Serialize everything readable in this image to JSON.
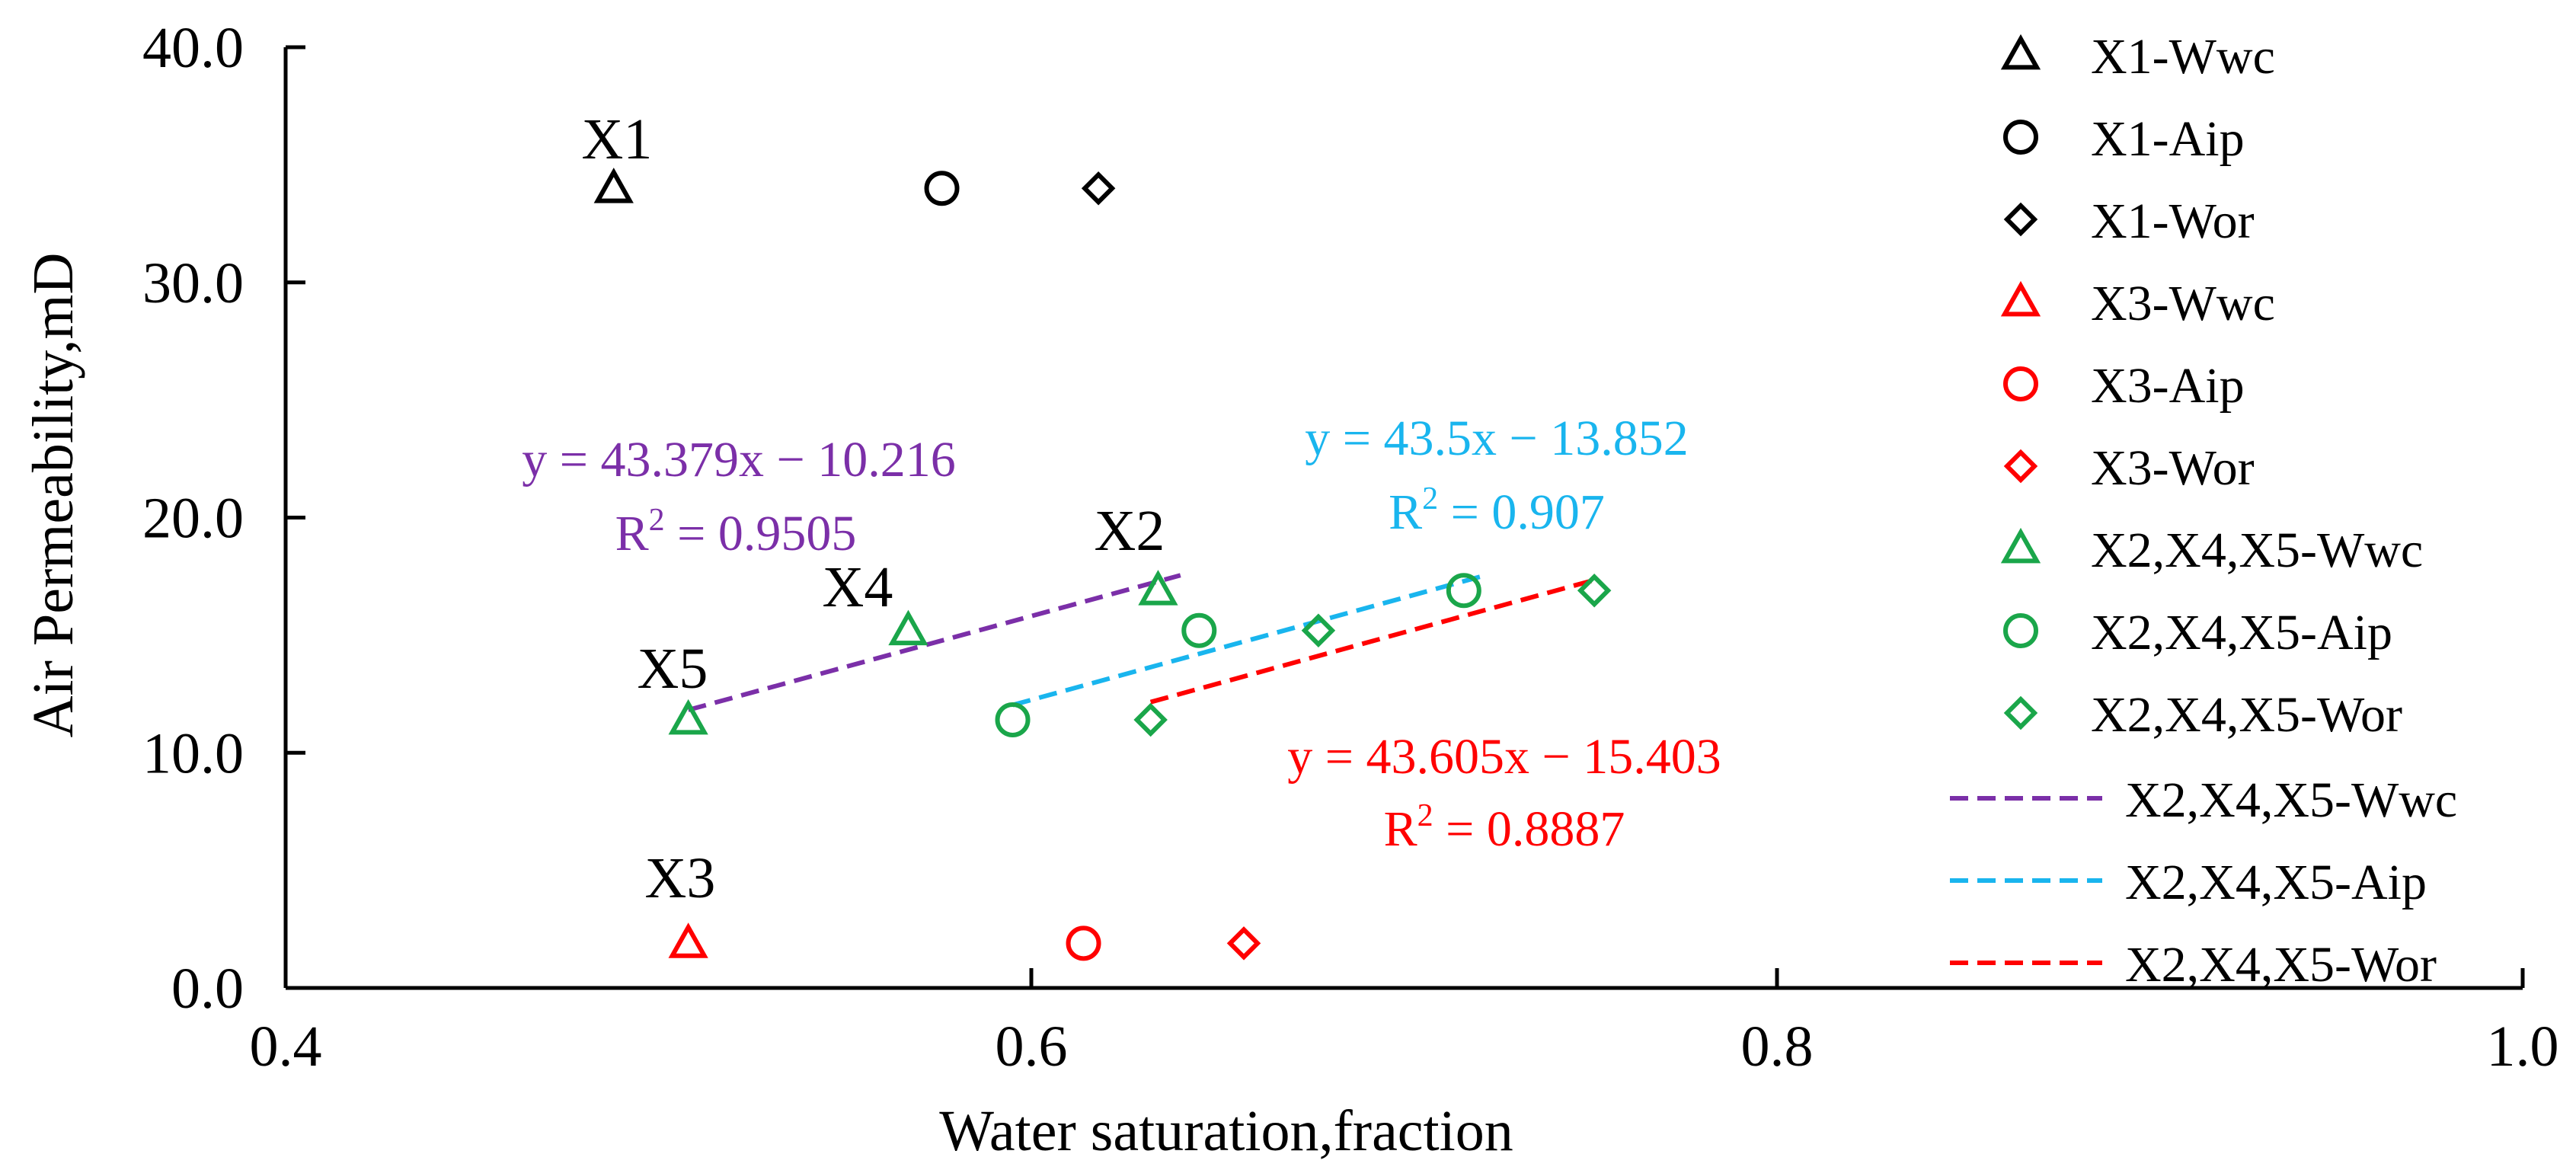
{
  "chart_data": {
    "type": "scatter",
    "title": "",
    "xlabel": "Water saturation,fraction",
    "ylabel": "Air Permeability,mD",
    "xlim": [
      0.4,
      1.0
    ],
    "ylim": [
      0.0,
      40.0
    ],
    "xticks": [
      "0.4",
      "0.6",
      "0.8",
      "1.0"
    ],
    "xtick_values": [
      0.4,
      0.6,
      0.8,
      1.0
    ],
    "yticks": [
      "0.0",
      "10.0",
      "20.0",
      "30.0",
      "40.0"
    ],
    "ytick_values": [
      0,
      10,
      20,
      30,
      40
    ],
    "grid": false,
    "legend_position": "right",
    "series": [
      {
        "name": "X1-Wwc",
        "marker": "triangle",
        "color": "#000000",
        "points": [
          {
            "x": 0.488,
            "y": 34.0
          }
        ]
      },
      {
        "name": "X1-Aip",
        "marker": "circle",
        "color": "#000000",
        "points": [
          {
            "x": 0.576,
            "y": 34.0
          }
        ]
      },
      {
        "name": "X1-Wor",
        "marker": "diamond",
        "color": "#000000",
        "points": [
          {
            "x": 0.618,
            "y": 34.0
          }
        ]
      },
      {
        "name": "X3-Wwc",
        "marker": "triangle",
        "color": "#ff0000",
        "points": [
          {
            "x": 0.508,
            "y": 1.9
          }
        ]
      },
      {
        "name": "X3-Aip",
        "marker": "circle",
        "color": "#ff0000",
        "points": [
          {
            "x": 0.614,
            "y": 1.9
          }
        ]
      },
      {
        "name": "X3-Wor",
        "marker": "diamond",
        "color": "#ff0000",
        "points": [
          {
            "x": 0.657,
            "y": 1.9
          }
        ]
      },
      {
        "name": "X2,X4,X5-Wwc",
        "marker": "triangle",
        "color": "#1aa64a",
        "points": [
          {
            "x": 0.508,
            "y": 11.4
          },
          {
            "x": 0.567,
            "y": 15.2
          },
          {
            "x": 0.634,
            "y": 16.9
          }
        ]
      },
      {
        "name": "X2,X4,X5-Aip",
        "marker": "circle",
        "color": "#1aa64a",
        "points": [
          {
            "x": 0.595,
            "y": 11.4
          },
          {
            "x": 0.645,
            "y": 15.2
          },
          {
            "x": 0.716,
            "y": 16.9
          }
        ]
      },
      {
        "name": "X2,X4,X5-Wor",
        "marker": "diamond",
        "color": "#1aa64a",
        "points": [
          {
            "x": 0.632,
            "y": 11.4
          },
          {
            "x": 0.677,
            "y": 15.2
          },
          {
            "x": 0.751,
            "y": 16.9
          }
        ]
      }
    ],
    "trendlines": [
      {
        "name": "X2,X4,X5-Wwc",
        "color": "#7b2fa8",
        "slope": 43.379,
        "intercept": -10.216,
        "x_range": [
          0.508,
          0.64
        ],
        "equation": "y = 43.379x − 10.216",
        "r2_prefix": "R",
        "r2_sup": "2",
        "r2_suffix": " = 0.9505"
      },
      {
        "name": "X2,X4,X5-Aip",
        "color": "#19b5ee",
        "slope": 43.5,
        "intercept": -13.852,
        "x_range": [
          0.595,
          0.722
        ],
        "equation": "y = 43.5x − 13.852",
        "r2_prefix": "R",
        "r2_sup": "2",
        "r2_suffix": " = 0.907"
      },
      {
        "name": "X2,X4,X5-Wor",
        "color": "#ff0000",
        "slope": 43.605,
        "intercept": -15.403,
        "x_range": [
          0.632,
          0.751
        ],
        "equation": "y = 43.605x − 15.403",
        "r2_prefix": "R",
        "r2_sup": "2",
        "r2_suffix": " = 0.8887"
      }
    ],
    "annotations": [
      {
        "text": "X1",
        "color": "#000000"
      },
      {
        "text": "X2",
        "color": "#000000"
      },
      {
        "text": "X3",
        "color": "#000000"
      },
      {
        "text": "X4",
        "color": "#000000"
      },
      {
        "text": "X5",
        "color": "#000000"
      }
    ]
  }
}
